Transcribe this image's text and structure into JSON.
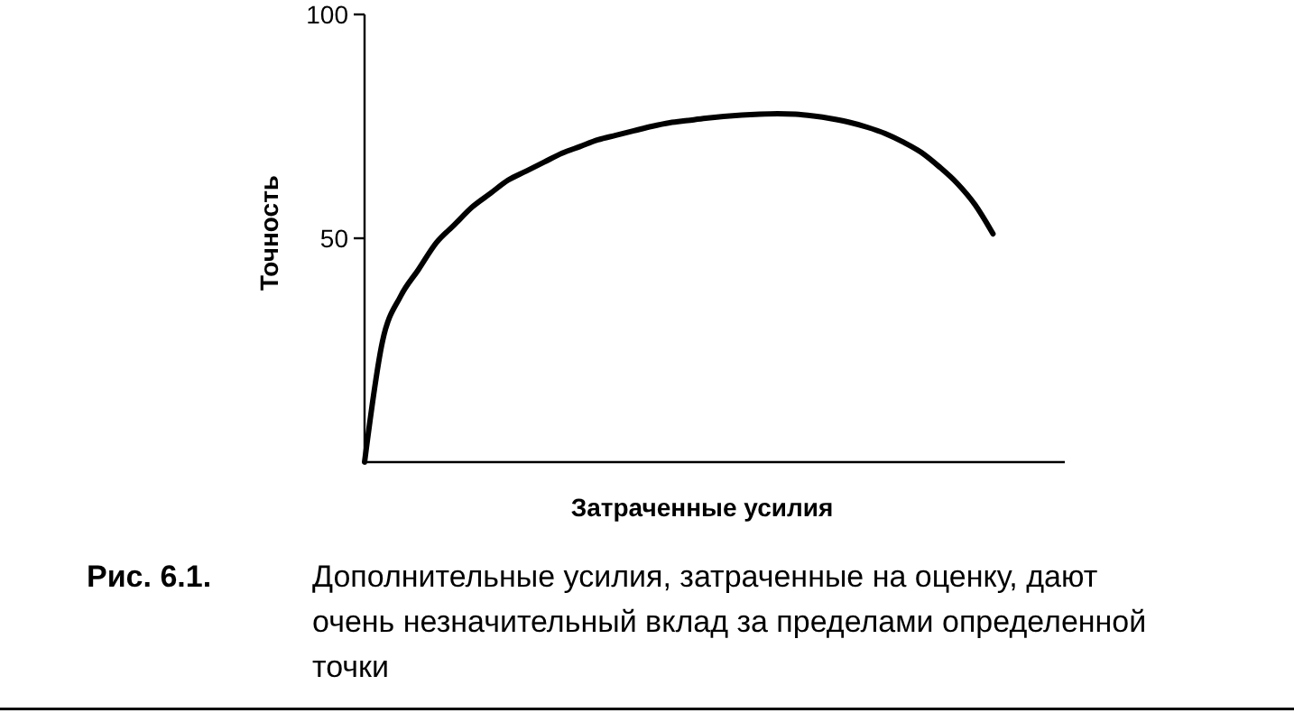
{
  "chart_data": {
    "type": "line",
    "xlabel": "Затраченные усилия",
    "ylabel": "Точность",
    "annotations": [
      "Рис. 6.1. Дополнительные усилия, затраченные на оценку, дают очень незначительный вклад за пределами определенной точки"
    ],
    "categories": [
      null,
      null,
      null,
      null,
      null,
      null,
      null,
      null,
      null,
      null,
      null,
      null,
      null,
      null,
      null,
      null,
      null,
      null,
      null,
      null,
      null,
      null,
      null,
      null,
      null,
      null,
      null,
      null,
      null,
      null,
      null,
      null,
      null,
      null,
      null,
      null,
      null,
      null,
      null,
      null
    ],
    "series": [
      {
        "color": "#000000",
        "values": [
          0,
          27,
          37,
          43,
          49,
          53,
          57,
          60,
          63,
          65,
          67,
          69,
          70.5,
          72,
          73,
          74,
          75,
          75.8,
          76.3,
          76.8,
          77.2,
          77.5,
          77.7,
          77.8,
          77.7,
          77.3,
          76.7,
          75.9,
          74.8,
          73.4,
          71.5,
          69.2,
          66,
          62.3,
          57.5,
          51,
          null,
          null,
          null,
          null
        ]
      }
    ],
    "ylim": [
      0,
      100
    ],
    "yticks": [
      50,
      100
    ],
    "grid": false,
    "marker": "none",
    "line_style": "solid"
  }
}
